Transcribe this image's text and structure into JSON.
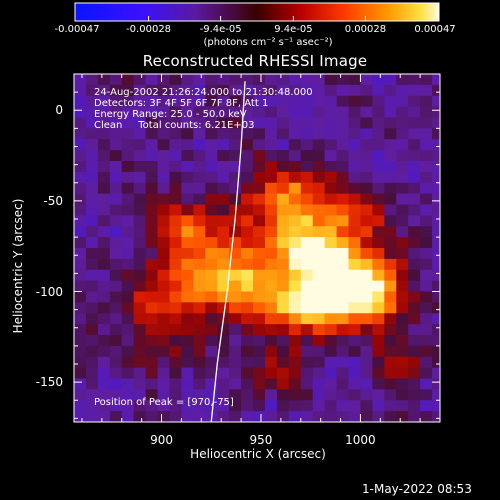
{
  "colorbar": {
    "ticks": [
      "-0.00047",
      "-0.00028",
      "-9.4e-05",
      "9.4e-05",
      "0.00028",
      "0.00047"
    ],
    "tick_values": [
      -0.00047,
      -0.00028,
      -9.4e-05,
      9.4e-05,
      0.00028,
      0.00047
    ],
    "range": [
      -0.00047,
      0.00047
    ],
    "units_label": "(photons cm⁻² s⁻¹ asec⁻²)"
  },
  "chart_data": {
    "type": "heatmap",
    "title": "Reconstructed RHESSI Image",
    "xlabel": "Heliocentric X (arcsec)",
    "ylabel": "Heliocentric Y (arcsec)",
    "xlim": [
      856,
      1040
    ],
    "ylim": [
      -172,
      20
    ],
    "x_ticks": [
      900,
      950,
      1000
    ],
    "y_ticks": [
      0,
      -50,
      -100,
      -150
    ],
    "info_lines": [
      "24-Aug-2002 21:26:24.000 to 21:30:48.000",
      "Detectors: 3F 4F 5F 6F 7F 8F, Att 1",
      "Energy Range: 25.0 - 50.0 keV",
      "Clean     Total counts: 6.21E+03"
    ],
    "peak_text": "Position of Peak = [970,-75]",
    "peak_position": [
      970,
      -75
    ],
    "limb_points": [
      [
        942,
        16
      ],
      [
        940,
        -20
      ],
      [
        937,
        -60
      ],
      [
        933,
        -100
      ],
      [
        928,
        -140
      ],
      [
        925,
        -172
      ]
    ],
    "sources": [
      {
        "x": 970,
        "y": -75,
        "amp": 1.0,
        "sx": 16,
        "sy": 20
      },
      {
        "x": 990,
        "y": -90,
        "amp": 0.95,
        "sx": 14,
        "sy": 14
      },
      {
        "x": 940,
        "y": -95,
        "amp": 0.75,
        "sx": 12,
        "sy": 14
      },
      {
        "x": 975,
        "y": -110,
        "amp": 0.85,
        "sx": 18,
        "sy": 9
      },
      {
        "x": 1010,
        "y": -100,
        "amp": 0.75,
        "sx": 10,
        "sy": 12
      },
      {
        "x": 920,
        "y": -80,
        "amp": 0.65,
        "sx": 13,
        "sy": 18
      },
      {
        "x": 900,
        "y": -110,
        "amp": 0.45,
        "sx": 14,
        "sy": 18
      },
      {
        "x": 960,
        "y": -45,
        "amp": 0.45,
        "sx": 14,
        "sy": 12
      },
      {
        "x": 1000,
        "y": -55,
        "amp": 0.4,
        "sx": 12,
        "sy": 10
      },
      {
        "x": 1020,
        "y": -140,
        "amp": 0.35,
        "sx": 10,
        "sy": 10
      },
      {
        "x": 955,
        "y": -140,
        "amp": 0.3,
        "sx": 14,
        "sy": 12
      },
      {
        "x": 905,
        "y": -60,
        "amp": 0.35,
        "sx": 10,
        "sy": 10
      }
    ]
  },
  "timestamp": "1-May-2022 08:53"
}
